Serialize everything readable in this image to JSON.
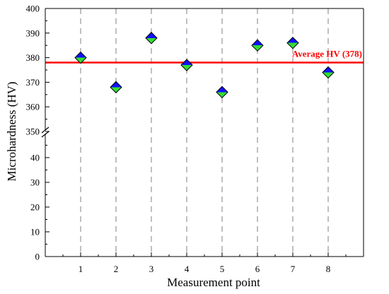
{
  "chart_data": {
    "type": "scatter",
    "xlabel": "Measurement point",
    "ylabel": "Microhardness (HV)",
    "x": [
      1,
      2,
      3,
      4,
      5,
      6,
      7,
      8
    ],
    "values": [
      380,
      368,
      388,
      377,
      366,
      385,
      386,
      374
    ],
    "xlim": [
      0,
      9
    ],
    "y_segments": [
      {
        "range": [
          0,
          50
        ],
        "ticks": [
          0,
          10,
          20,
          30,
          40
        ]
      },
      {
        "range": [
          350,
          400
        ],
        "ticks": [
          350,
          360,
          370,
          380,
          390,
          400
        ]
      }
    ],
    "axis_break": "between 50 and 350",
    "average": {
      "value": 378,
      "label": "Average HV (378)",
      "color": "#ff0000"
    },
    "marker": {
      "shape": "diamond",
      "top_color": "#1010ff",
      "bottom_color": "#33dd33"
    },
    "vertical_gridlines": "dashed at each measurement point",
    "legend": "none"
  }
}
